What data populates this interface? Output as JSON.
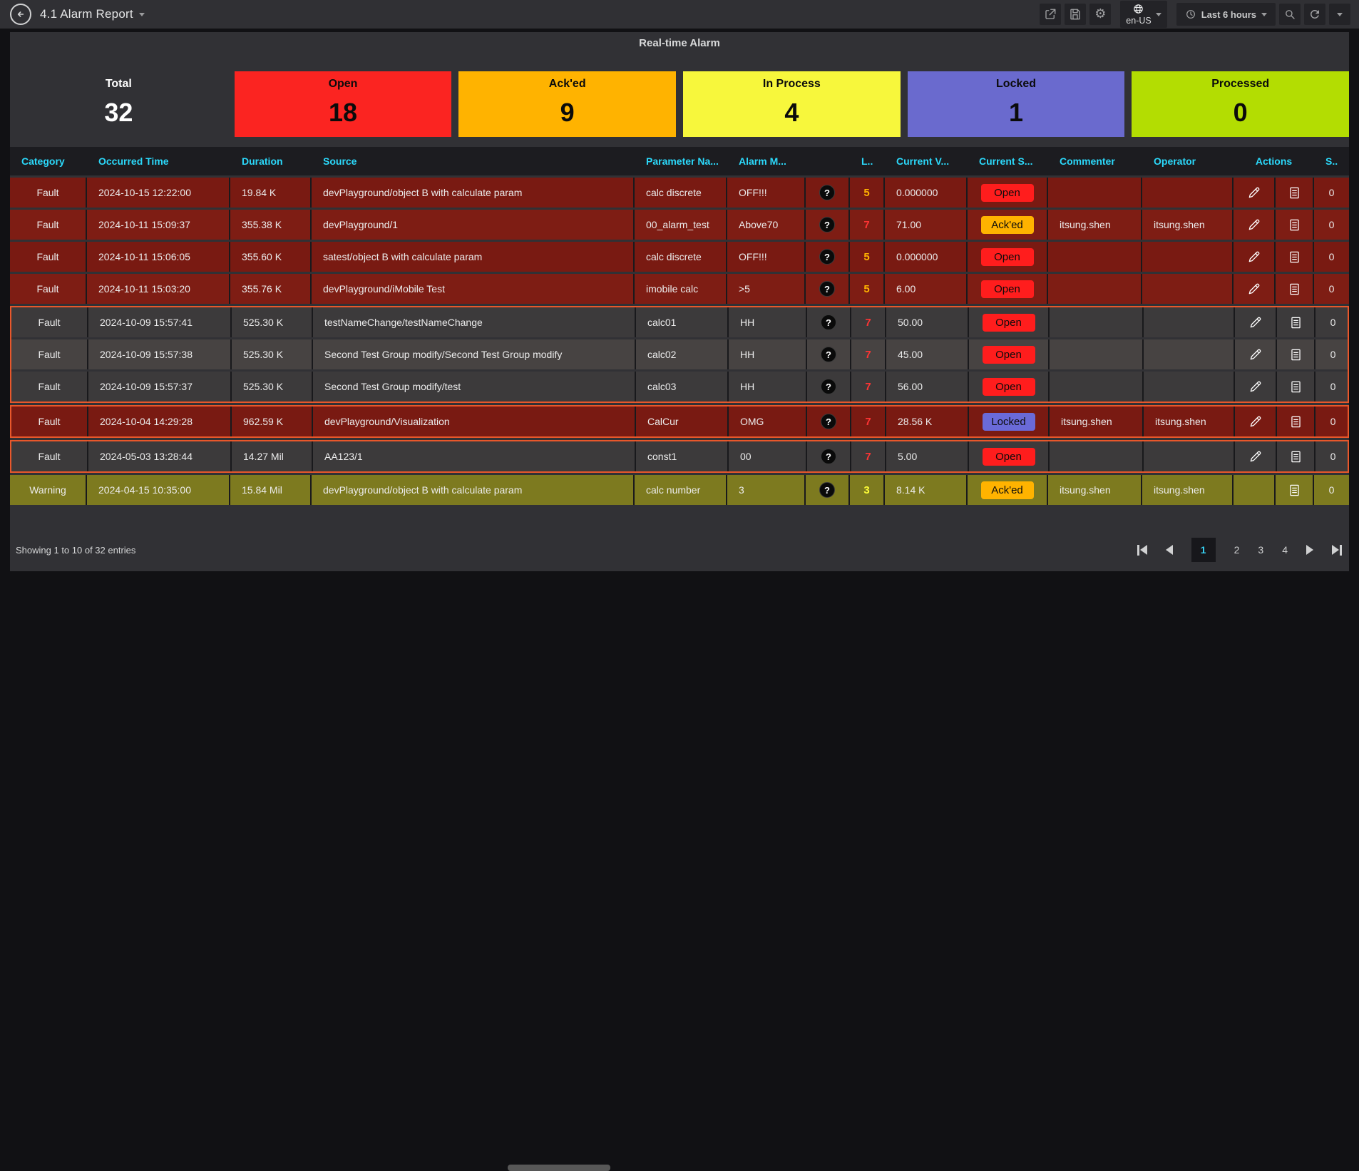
{
  "navbar": {
    "title": "4.1 Alarm Report",
    "language": "en-US",
    "time_range": "Last 6 hours"
  },
  "panel": {
    "title": "Real-time Alarm",
    "cards": [
      {
        "id": "total",
        "label": "Total",
        "value": "32",
        "bg": "transparent",
        "fg": "#ffffff"
      },
      {
        "id": "open",
        "label": "Open",
        "value": "18",
        "bg": "#fb2421",
        "fg": "#0b0b0b"
      },
      {
        "id": "acked",
        "label": "Ack'ed",
        "value": "9",
        "bg": "#ffb300",
        "fg": "#0b0b0b"
      },
      {
        "id": "inprocess",
        "label": "In Process",
        "value": "4",
        "bg": "#f7f73c",
        "fg": "#0b0b0b"
      },
      {
        "id": "locked",
        "label": "Locked",
        "value": "1",
        "bg": "#6a6ace",
        "fg": "#0b0b0b"
      },
      {
        "id": "processed",
        "label": "Processed",
        "value": "0",
        "bg": "#b3dd02",
        "fg": "#0b0b0b"
      }
    ]
  },
  "table": {
    "headers": [
      {
        "label": "Category"
      },
      {
        "label": "Occurred Time"
      },
      {
        "label": "Duration"
      },
      {
        "label": "Source"
      },
      {
        "label": "Parameter Na..."
      },
      {
        "label": "Alarm M..."
      },
      {
        "label": ""
      },
      {
        "label": "L.."
      },
      {
        "label": "Current V..."
      },
      {
        "label": "Current S..."
      },
      {
        "label": "Commenter"
      },
      {
        "label": "Operator"
      },
      {
        "label": "Actions",
        "span": 2
      },
      {
        "label": "S.."
      }
    ],
    "rows": [
      {
        "category": "Fault",
        "time": "2024-10-15 12:22:00",
        "duration": "19.84 K",
        "source": "devPlayground/object B with calculate param",
        "parameter": "calc discrete",
        "alarm": "OFF!!!",
        "level": "5",
        "level_color": "orange",
        "value": "0.000000",
        "status": "Open",
        "status_type": "open",
        "commenter": "",
        "operator": "",
        "actions": [
          "edit",
          "log"
        ],
        "s": "0",
        "bg": "fault1",
        "group": 0
      },
      {
        "category": "Fault",
        "time": "2024-10-11 15:09:37",
        "duration": "355.38 K",
        "source": "devPlayground/1",
        "parameter": "00_alarm_test",
        "alarm": "Above70",
        "level": "7",
        "level_color": "red",
        "value": "71.00",
        "status": "Ack'ed",
        "status_type": "acked",
        "commenter": "itsung.shen",
        "operator": "itsung.shen",
        "actions": [
          "edit",
          "log"
        ],
        "s": "0",
        "bg": "fault2",
        "group": 0
      },
      {
        "category": "Fault",
        "time": "2024-10-11 15:06:05",
        "duration": "355.60 K",
        "source": "satest/object B with calculate param",
        "parameter": "calc discrete",
        "alarm": "OFF!!!",
        "level": "5",
        "level_color": "orange",
        "value": "0.000000",
        "status": "Open",
        "status_type": "open",
        "commenter": "",
        "operator": "",
        "actions": [
          "edit",
          "log"
        ],
        "s": "0",
        "bg": "fault1",
        "group": 0
      },
      {
        "category": "Fault",
        "time": "2024-10-11 15:03:20",
        "duration": "355.76 K",
        "source": "devPlayground/iMobile Test",
        "parameter": "imobile calc",
        "alarm": ">5",
        "level": "5",
        "level_color": "orange",
        "value": "6.00",
        "status": "Open",
        "status_type": "open",
        "commenter": "",
        "operator": "",
        "actions": [
          "edit",
          "log"
        ],
        "s": "0",
        "bg": "fault2",
        "group": 0
      },
      {
        "category": "Fault",
        "time": "2024-10-09 15:57:41",
        "duration": "525.30 K",
        "source": "testNameChange/testNameChange",
        "parameter": "calc01",
        "alarm": "HH",
        "level": "7",
        "level_color": "red",
        "value": "50.00",
        "status": "Open",
        "status_type": "open",
        "commenter": "",
        "operator": "",
        "actions": [
          "edit",
          "log"
        ],
        "s": "0",
        "bg": "dark1",
        "group": 1
      },
      {
        "category": "Fault",
        "time": "2024-10-09 15:57:38",
        "duration": "525.30 K",
        "source": "Second Test Group modify/Second Test Group modify",
        "parameter": "calc02",
        "alarm": "HH",
        "level": "7",
        "level_color": "red",
        "value": "45.00",
        "status": "Open",
        "status_type": "open",
        "commenter": "",
        "operator": "",
        "actions": [
          "edit",
          "log"
        ],
        "s": "0",
        "bg": "dark2",
        "group": 1
      },
      {
        "category": "Fault",
        "time": "2024-10-09 15:57:37",
        "duration": "525.30 K",
        "source": "Second Test Group modify/test",
        "parameter": "calc03",
        "alarm": "HH",
        "level": "7",
        "level_color": "red",
        "value": "56.00",
        "status": "Open",
        "status_type": "open",
        "commenter": "",
        "operator": "",
        "actions": [
          "edit",
          "log"
        ],
        "s": "0",
        "bg": "dark1",
        "group": 1
      },
      {
        "category": "Fault",
        "time": "2024-10-04 14:29:28",
        "duration": "962.59 K",
        "source": "devPlayground/Visualization",
        "parameter": "CalCur",
        "alarm": "OMG",
        "level": "7",
        "level_color": "red",
        "value": "28.56 K",
        "status": "Locked",
        "status_type": "locked",
        "commenter": "itsung.shen",
        "operator": "itsung.shen",
        "actions": [
          "edit",
          "log"
        ],
        "s": "0",
        "bg": "fault1",
        "group": 2
      },
      {
        "category": "Fault",
        "time": "2024-05-03 13:28:44",
        "duration": "14.27 Mil",
        "source": "AA123/1",
        "parameter": "const1",
        "alarm": "00",
        "level": "7",
        "level_color": "red",
        "value": "5.00",
        "status": "Open",
        "status_type": "open",
        "commenter": "",
        "operator": "",
        "actions": [
          "edit",
          "log"
        ],
        "s": "0",
        "bg": "dark1",
        "group": 3
      },
      {
        "category": "Warning",
        "time": "2024-04-15 10:35:00",
        "duration": "15.84 Mil",
        "source": "devPlayground/object B with calculate param",
        "parameter": "calc number",
        "alarm": "3",
        "level": "3",
        "level_color": "yellow",
        "value": "8.14 K",
        "status": "Ack'ed",
        "status_type": "acked",
        "commenter": "itsung.shen",
        "operator": "itsung.shen",
        "actions": [
          "log"
        ],
        "s": "0",
        "bg": "warning",
        "group": 0
      }
    ]
  },
  "footer": {
    "summary": "Showing 1 to 10 of 32 entries",
    "pages": [
      "1",
      "2",
      "3",
      "4"
    ],
    "active_page": "1"
  },
  "colors": {
    "rows": {
      "fault1": "#791a12",
      "fault2": "#7e1d14",
      "dark1": "#3c3a3b",
      "dark2": "#474342",
      "warning": "#7d7a1f"
    },
    "status": {
      "open": "#ff1d1d",
      "acked": "#ffb300",
      "locked": "#6a6ad8"
    },
    "level": {
      "orange": "#ffb300",
      "red": "#ff3434",
      "yellow": "#ffff38"
    },
    "highlight": "#e8572b",
    "header_text": "#2bd9fb",
    "question_icon": "?"
  }
}
